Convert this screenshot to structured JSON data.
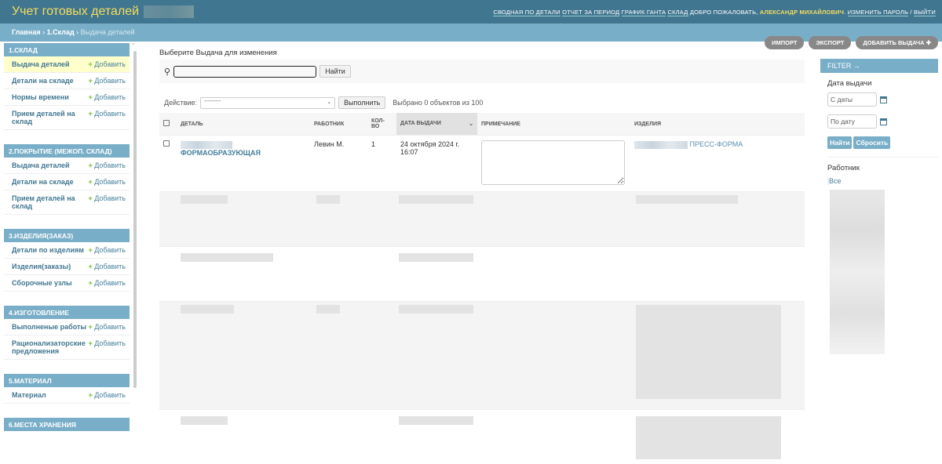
{
  "header": {
    "title": "Учет готовых деталей",
    "links": [
      "Сводная по детали",
      "Отчет за период",
      "График Ганта",
      "Склад"
    ],
    "welcome": "Добро пожаловать,",
    "user": "Александр Михайлович",
    "change_password": "Изменить пароль",
    "logout": "Выйти"
  },
  "breadcrumbs": {
    "home": "Главная",
    "section": "1.Склад",
    "current": "Выдача деталей"
  },
  "sidebar": {
    "add_label": "Добавить",
    "sections": [
      {
        "title": "1.Склад",
        "items": [
          "Выдача деталей",
          "Детали на складе",
          "Нормы времени",
          "Прием деталей на склад"
        ]
      },
      {
        "title": "2.Покрытие (межоп. склад)",
        "items": [
          "Выдача деталей",
          "Детали на складе",
          "Прием деталей на склад"
        ]
      },
      {
        "title": "3.Изделия(заказ)",
        "items": [
          "Детали по изделиям",
          "Изделия(заказы)",
          "Сборочные узлы"
        ]
      },
      {
        "title": "4.Изготовление",
        "items": [
          "Выполненые работы",
          "Рационализаторские предложения"
        ]
      },
      {
        "title": "5.Материал",
        "items": [
          "Материал"
        ]
      },
      {
        "title": "6.Места хранения",
        "items": []
      }
    ]
  },
  "object_tools": {
    "import": "Импорт",
    "export": "Экспорт",
    "add": "Добавить Выдача"
  },
  "main": {
    "subtitle": "Выберите Выдача для изменения",
    "search_button": "Найти",
    "action_label": "Действие:",
    "action_value": "---------",
    "run_button": "Выполнить",
    "selected": "Выбрано 0 объектов из 100",
    "columns": [
      "Деталь",
      "Работник",
      "Кол-во",
      "Дата выдачи",
      "Примечание",
      "Изделия"
    ],
    "rows": [
      {
        "detail": "ФОРМАОБРАЗУЮЩАЯ",
        "worker": "Левин М.",
        "qty": "1",
        "date": "24 октября 2024 г. 16:07",
        "note": "",
        "product": "ПРЕСС-ФОРМА"
      }
    ]
  },
  "filter": {
    "title": "FILTER →",
    "date_title": "Дата выдачи",
    "from_placeholder": "С даты",
    "to_placeholder": "По дату",
    "apply": "Найти",
    "reset": "Сбросить",
    "worker_title": "Работник",
    "all": "Все"
  },
  "colors": {
    "header": "#417690",
    "accent": "#79aec8",
    "title": "#f5dd5d",
    "active_row": "#ffffcc",
    "add_icon": "#70bf2b"
  }
}
